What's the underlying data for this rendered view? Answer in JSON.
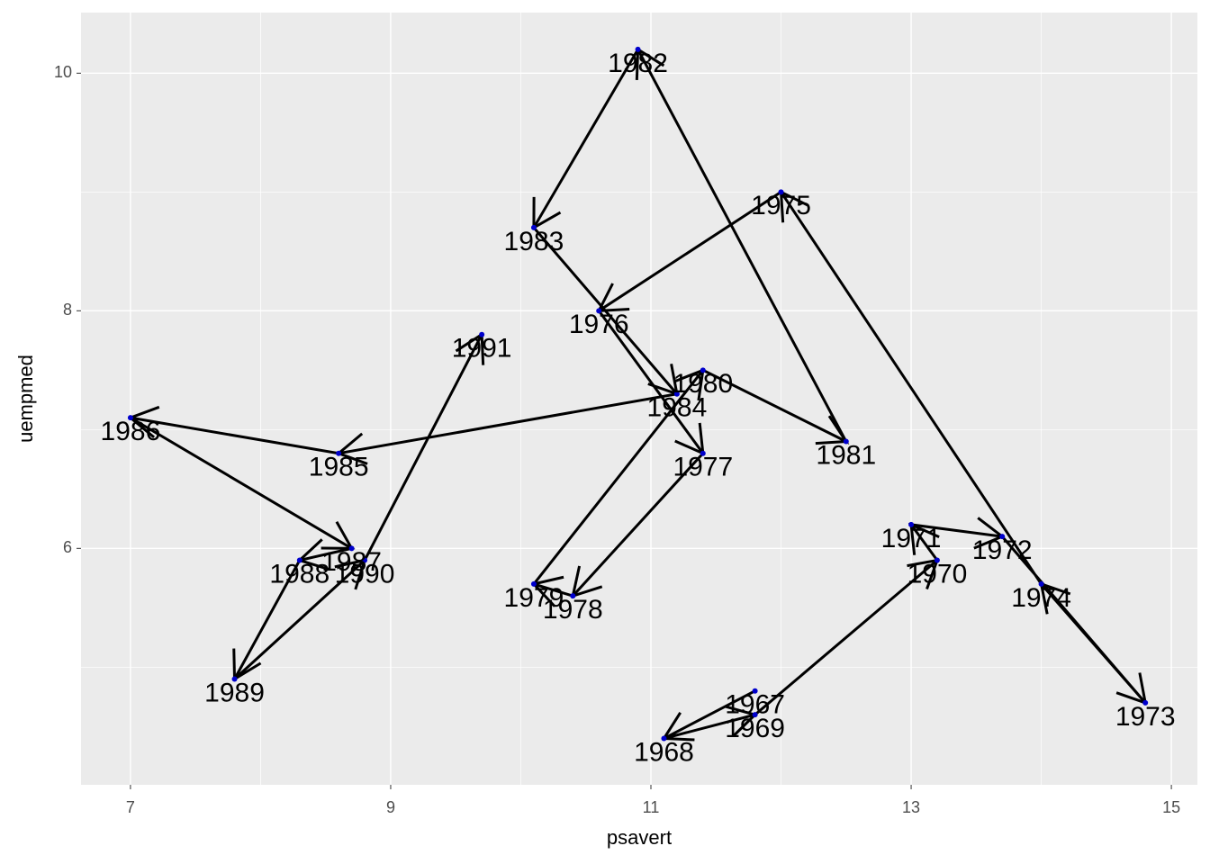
{
  "chart_data": {
    "type": "path",
    "x_label": "psavert",
    "y_label": "uempmed",
    "labels": [
      1967,
      1968,
      1969,
      1970,
      1971,
      1972,
      1973,
      1974,
      1975,
      1976,
      1977,
      1978,
      1979,
      1980,
      1981,
      1982,
      1983,
      1984,
      1985,
      1986,
      1987,
      1988,
      1989,
      1990,
      1991
    ],
    "x": [
      11.8,
      11.1,
      11.8,
      13.2,
      13.0,
      13.7,
      14.8,
      14.0,
      12.0,
      10.6,
      11.4,
      10.4,
      10.1,
      11.4,
      12.5,
      10.9,
      10.1,
      11.2,
      8.6,
      7.0,
      8.7,
      8.3,
      7.8,
      8.8,
      9.7
    ],
    "values": [
      4.8,
      4.4,
      4.6,
      5.9,
      6.2,
      6.1,
      4.7,
      5.7,
      9.0,
      8.0,
      6.8,
      5.6,
      5.7,
      7.5,
      6.9,
      10.2,
      8.7,
      7.3,
      6.8,
      7.1,
      6.0,
      5.9,
      4.9,
      5.9,
      7.8
    ],
    "color": "#000000",
    "point_color": "#0000cc",
    "xlim": [
      6.62,
      15.2
    ],
    "ylim": [
      4.01,
      10.51
    ],
    "xticks": [
      7,
      9,
      11,
      13,
      15
    ],
    "yticks": [
      6,
      8,
      10
    ],
    "grid": true,
    "arrows": true
  }
}
